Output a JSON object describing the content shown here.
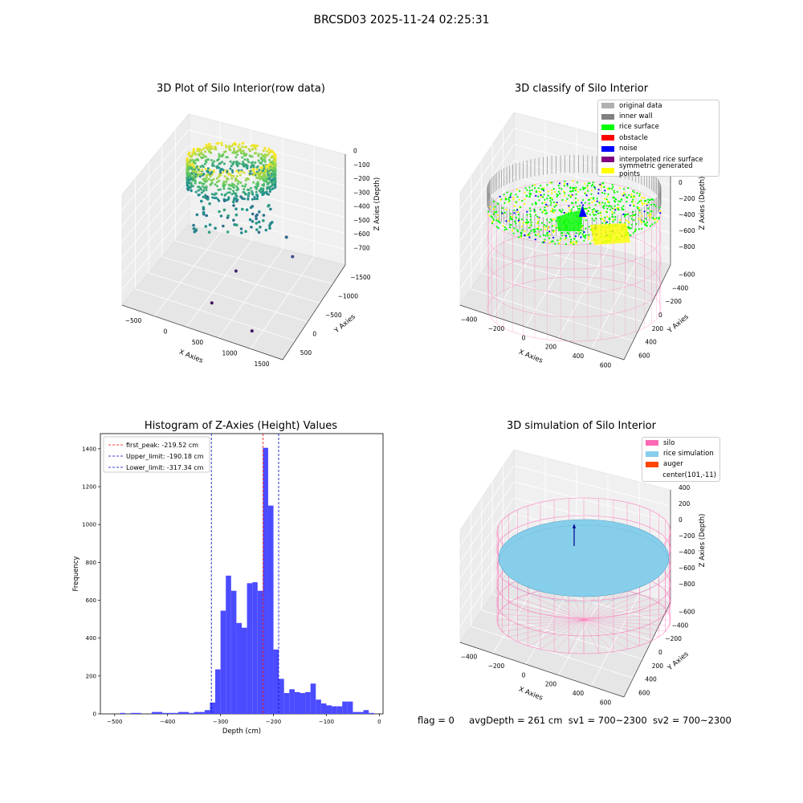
{
  "suptitle": "BRCSD03 2025-11-24 02:25:31",
  "footer": {
    "flag": "flag = 0",
    "avg": "avgDepth = 261 cm",
    "sv1": "sv1 = 700~2300",
    "sv2": "sv2 = 700~2300"
  },
  "colors": {
    "hist_bar": "#4b4bff",
    "first_peak": "#ff0000",
    "limits": "#0000cc",
    "rice_surface": "#00ff00",
    "obstacle": "#ff0000",
    "noise": "#0000ff",
    "inner_wall": "#808080",
    "original_data": "#b0b0b0",
    "interpolated": "#800080",
    "symmetric": "#ffff00",
    "silo": "#ff69b4",
    "rice_sim": "#87ceeb",
    "auger": "#ff4500"
  },
  "chart_data": [
    {
      "type": "scatter",
      "title": "3D Plot of Silo Interior(row data)",
      "xlabel": "X Axies",
      "ylabel": "Y Axies",
      "zlabel": "Z Axies (Depth)",
      "x_ticks": [
        "−500",
        "0",
        "500",
        "1000",
        "1500"
      ],
      "y_ticks": [
        "500",
        "0",
        "−500",
        "−1000",
        "−1500"
      ],
      "z_ticks": [
        "0",
        "−100",
        "−200",
        "−300",
        "−400",
        "−500",
        "−600",
        "−700"
      ],
      "xlim": [
        -600,
        1700
      ],
      "ylim": [
        -1550,
        700
      ],
      "zlim": [
        -780,
        40
      ],
      "colormap": "viridis",
      "outliers": [
        {
          "x": 1250,
          "y": -300,
          "z": -330
        },
        {
          "x": 1350,
          "y": -330,
          "z": -450
        },
        {
          "x": 600,
          "y": -500,
          "z": -620
        },
        {
          "x": 500,
          "y": -1100,
          "z": -700
        },
        {
          "x": 1200,
          "y": -1400,
          "z": -700
        }
      ]
    },
    {
      "type": "scatter",
      "title": "3D classify of Silo Interior",
      "xlabel": "X Axies",
      "ylabel": "Y Axies",
      "zlabel": "Z Axies (Depth)",
      "x_ticks": [
        "−400",
        "−200",
        "0",
        "200",
        "400",
        "600"
      ],
      "y_ticks": [
        "600",
        "400",
        "200",
        "0",
        "−200",
        "−400",
        "−600"
      ],
      "z_ticks": [
        "400",
        "200",
        "0",
        "−200",
        "−400",
        "−600",
        "−800"
      ],
      "legend": [
        "original data",
        "inner wall",
        "rice surface",
        "obstacle",
        "noise",
        "interpolated rice surface",
        "symmetric generated points"
      ]
    },
    {
      "type": "bar",
      "title": "Histogram of Z-Axies (Height) Values",
      "xlabel": "Depth (cm)",
      "ylabel": "Frequency",
      "xlim": [
        -527,
        7
      ],
      "ylim": [
        0,
        1480
      ],
      "x_ticks": [
        -500,
        -400,
        -300,
        -200,
        -100,
        0
      ],
      "x_tick_labels": [
        "−500",
        "−400",
        "−300",
        "−200",
        "−100",
        "0"
      ],
      "y_ticks": [
        0,
        200,
        400,
        600,
        800,
        1000,
        1200,
        1400
      ],
      "bin_start": -520,
      "bin_width": 10,
      "values": [
        0,
        0,
        0,
        5,
        0,
        5,
        5,
        0,
        0,
        10,
        10,
        5,
        5,
        5,
        10,
        10,
        5,
        10,
        10,
        20,
        60,
        235,
        545,
        730,
        650,
        480,
        455,
        690,
        695,
        650,
        1405,
        1100,
        340,
        185,
        110,
        130,
        115,
        110,
        115,
        160,
        75,
        55,
        45,
        40,
        40,
        65,
        65,
        10,
        10,
        20,
        5
      ],
      "vlines": [
        {
          "label": "first_peak: -219.52 cm",
          "x": -219.52,
          "color": "#ff0000"
        },
        {
          "label": "Upper_limit: -190.18 cm",
          "x": -190.18,
          "color": "#0000cc"
        },
        {
          "label": "Lower_limit: -317.34 cm",
          "x": -317.34,
          "color": "#0000cc"
        }
      ]
    },
    {
      "type": "scatter",
      "title": "3D simulation of Silo Interior",
      "xlabel": "X Axies",
      "ylabel": "Y Axies",
      "zlabel": "Z Axies (Depth)",
      "x_ticks": [
        "−400",
        "−200",
        "0",
        "200",
        "400",
        "600"
      ],
      "y_ticks": [
        "600",
        "400",
        "200",
        "0",
        "−200",
        "−400",
        "−600"
      ],
      "z_ticks": [
        "400",
        "200",
        "0",
        "−200",
        "−400",
        "−600",
        "−800"
      ],
      "legend": [
        "silo",
        "rice simulation",
        "auger",
        "center(101,-11)"
      ]
    }
  ]
}
